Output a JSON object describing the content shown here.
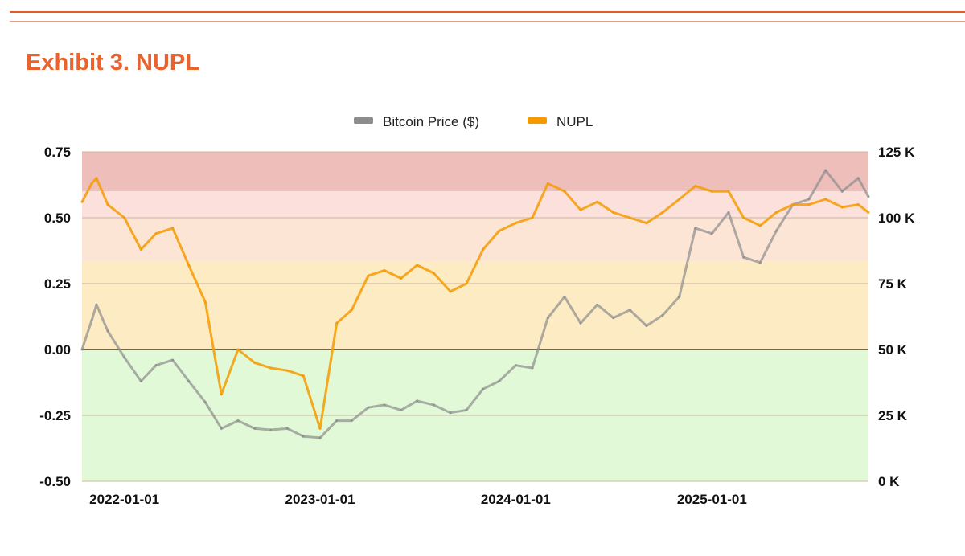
{
  "header": {
    "title": "Exhibit 3. NUPL"
  },
  "chart_data": {
    "type": "line",
    "title": "Exhibit 3. NUPL",
    "legend_position": "top",
    "x_ticks": [
      "2022-01-01",
      "2023-01-01",
      "2024-01-01",
      "2025-01-01"
    ],
    "x_range": [
      "2021-10-14",
      "2025-10-20"
    ],
    "y_left": {
      "range": [
        -0.5,
        0.75
      ],
      "ticks": [
        "-0.50",
        "-0.25",
        "0.00",
        "0.25",
        "0.50",
        "0.75"
      ]
    },
    "y_right": {
      "range": [
        0,
        125000
      ],
      "ticks": [
        "0 K",
        "25 K",
        "50 K",
        "75 K",
        "100 K",
        "125 K"
      ]
    },
    "grid": true,
    "bands": [
      {
        "from": 0.6,
        "to": 0.75,
        "color": "#eebfba"
      },
      {
        "from": 0.5,
        "to": 0.6,
        "color": "#fce0dc"
      },
      {
        "from": 0.335,
        "to": 0.5,
        "color": "#fde5d5"
      },
      {
        "from": 0,
        "to": 0.335,
        "color": "#fdebc4"
      },
      {
        "from": -0.5,
        "to": 0,
        "color": "#e2f9d8"
      }
    ],
    "x": [
      "2021-10-14",
      "2021-11-01",
      "2021-11-10",
      "2021-12-01",
      "2022-01-01",
      "2022-02-01",
      "2022-03-01",
      "2022-04-01",
      "2022-05-01",
      "2022-06-01",
      "2022-07-01",
      "2022-08-01",
      "2022-09-01",
      "2022-10-01",
      "2022-11-01",
      "2022-12-01",
      "2023-01-01",
      "2023-02-01",
      "2023-03-01",
      "2023-04-01",
      "2023-05-01",
      "2023-06-01",
      "2023-07-01",
      "2023-08-01",
      "2023-09-01",
      "2023-10-01",
      "2023-11-01",
      "2023-12-01",
      "2024-01-01",
      "2024-02-01",
      "2024-03-01",
      "2024-04-01",
      "2024-05-01",
      "2024-06-01",
      "2024-07-01",
      "2024-08-01",
      "2024-09-01",
      "2024-10-01",
      "2024-11-01",
      "2024-12-01",
      "2025-01-01",
      "2025-02-01",
      "2025-03-01",
      "2025-04-01",
      "2025-05-01",
      "2025-06-01",
      "2025-07-01",
      "2025-08-01",
      "2025-09-01",
      "2025-10-01",
      "2025-10-20"
    ],
    "series": [
      {
        "name": "Bitcoin Price ($)",
        "axis": "right",
        "color": "#8c8c8c",
        "values": [
          50000,
          61000,
          67000,
          57000,
          47000,
          38000,
          44000,
          46000,
          38000,
          30000,
          20000,
          23000,
          20000,
          19500,
          20000,
          17000,
          16500,
          23000,
          23000,
          28000,
          29000,
          27000,
          30500,
          29000,
          26000,
          27000,
          35000,
          38000,
          44000,
          43000,
          62000,
          70000,
          60000,
          67000,
          62000,
          65000,
          59000,
          63000,
          70000,
          96000,
          94000,
          102000,
          85000,
          83000,
          95000,
          105000,
          107000,
          118000,
          110000,
          115000,
          108000
        ]
      },
      {
        "name": "NUPL",
        "axis": "left",
        "color": "#f59b00",
        "values": [
          0.56,
          0.63,
          0.65,
          0.55,
          0.5,
          0.38,
          0.44,
          0.46,
          0.32,
          0.18,
          -0.17,
          0.0,
          -0.05,
          -0.07,
          -0.08,
          -0.1,
          -0.3,
          0.1,
          0.15,
          0.28,
          0.3,
          0.27,
          0.32,
          0.29,
          0.22,
          0.25,
          0.38,
          0.45,
          0.48,
          0.5,
          0.63,
          0.6,
          0.53,
          0.56,
          0.52,
          0.5,
          0.48,
          0.52,
          0.57,
          0.62,
          0.6,
          0.6,
          0.5,
          0.47,
          0.52,
          0.55,
          0.55,
          0.57,
          0.54,
          0.55,
          0.52
        ]
      }
    ]
  }
}
